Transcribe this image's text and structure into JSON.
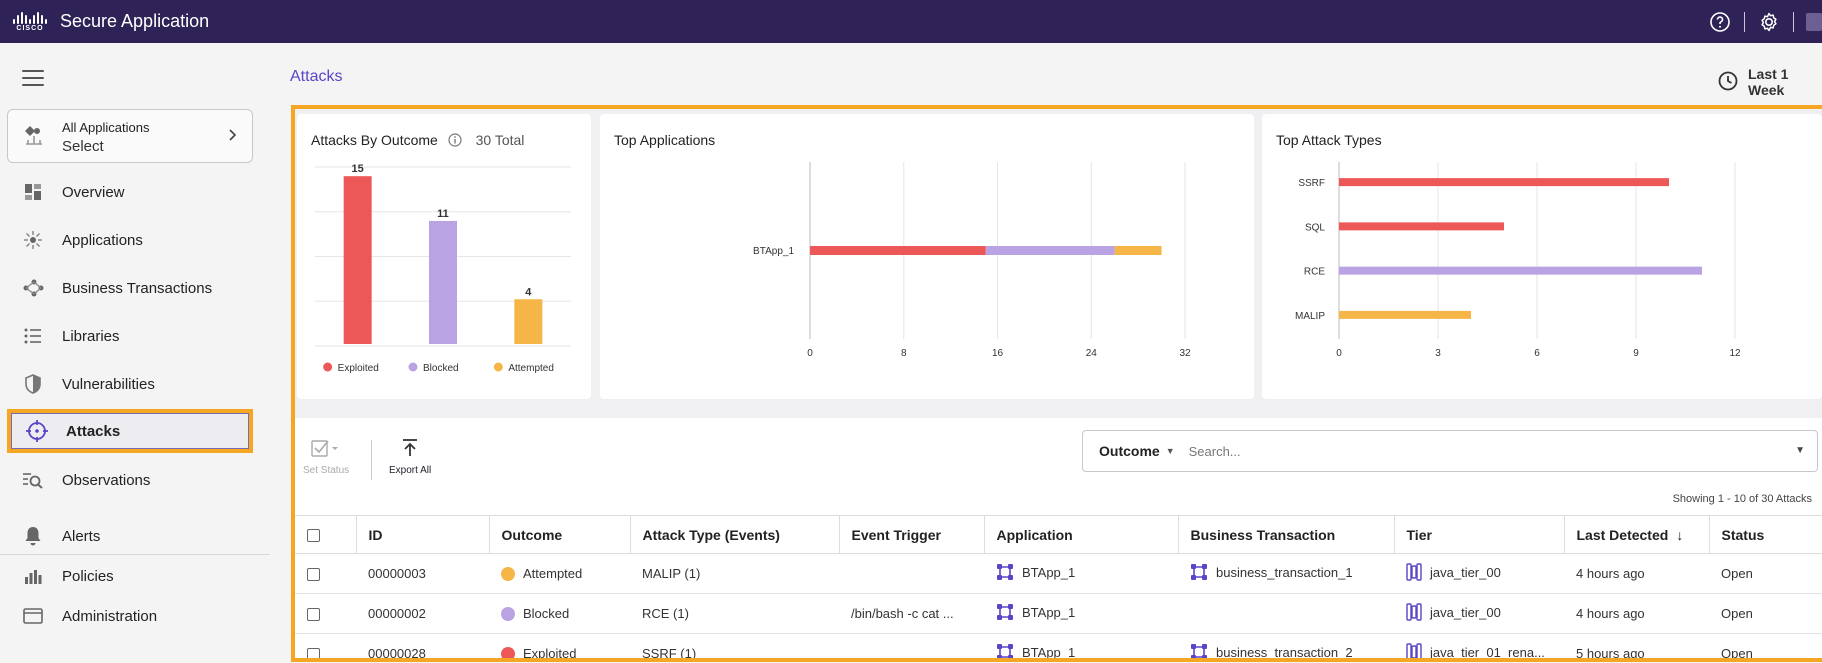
{
  "header": {
    "app_title": "Secure Application",
    "logo_text": "CISCO",
    "icons": [
      "help-icon",
      "gear-icon",
      "user-menu-icon"
    ]
  },
  "sidebar": {
    "app_selector": {
      "top": "All Applications",
      "bottom": "Select"
    },
    "items": [
      {
        "label": "Overview",
        "icon": "overview-icon"
      },
      {
        "label": "Applications",
        "icon": "applications-icon"
      },
      {
        "label": "Business Transactions",
        "icon": "business-transactions-icon"
      },
      {
        "label": "Libraries",
        "icon": "libraries-icon"
      },
      {
        "label": "Vulnerabilities",
        "icon": "vulnerabilities-icon"
      },
      {
        "label": "Attacks",
        "icon": "attacks-icon",
        "active": true
      },
      {
        "label": "Observations",
        "icon": "observations-icon"
      },
      {
        "label": "Alerts",
        "icon": "bell-icon"
      },
      {
        "label": "Policies",
        "icon": "policies-icon"
      },
      {
        "label": "Administration",
        "icon": "administration-icon"
      }
    ]
  },
  "page": {
    "title": "Attacks",
    "time_range": "Last 1 Week"
  },
  "colors": {
    "exploited": "#ec5858",
    "blocked": "#b9a3e3",
    "attempted": "#f5b547",
    "brand": "#2e2257",
    "accent": "#5a45c8",
    "highlight": "#f5a623"
  },
  "cards": {
    "outcome": {
      "title": "Attacks By Outcome",
      "total": "30 Total"
    },
    "top_apps": {
      "title": "Top Applications"
    },
    "top_types": {
      "title": "Top Attack Types"
    }
  },
  "chart_data": [
    {
      "type": "bar",
      "title": "Attacks By Outcome",
      "categories": [
        "Exploited",
        "Blocked",
        "Attempted"
      ],
      "values": [
        15,
        11,
        4
      ],
      "colors": [
        "#ec5858",
        "#b9a3e3",
        "#f5b547"
      ],
      "ylim": [
        0,
        16
      ],
      "legend": "bottom",
      "grid": true
    },
    {
      "type": "bar",
      "orientation": "horizontal",
      "stacked": true,
      "title": "Top Applications",
      "categories": [
        "BTApp_1"
      ],
      "series": [
        {
          "name": "Exploited",
          "values": [
            15
          ],
          "color": "#ec5858"
        },
        {
          "name": "Blocked",
          "values": [
            11
          ],
          "color": "#b9a3e3"
        },
        {
          "name": "Attempted",
          "values": [
            4
          ],
          "color": "#f5b547"
        }
      ],
      "xticks": [
        0,
        8,
        16,
        24,
        32
      ],
      "xlim": [
        0,
        32
      ],
      "grid": true
    },
    {
      "type": "bar",
      "orientation": "horizontal",
      "title": "Top Attack Types",
      "categories": [
        "SSRF",
        "SQL",
        "RCE",
        "MALIP"
      ],
      "values": [
        10,
        5,
        11,
        4
      ],
      "colors": [
        "#ec5858",
        "#ec5858",
        "#b9a3e3",
        "#f5b547"
      ],
      "xticks": [
        0,
        3,
        6,
        9,
        12
      ],
      "xlim": [
        0,
        12
      ],
      "grid": true
    }
  ],
  "toolbar": {
    "set_status": "Set Status",
    "export_all": "Export All",
    "filter_label": "Outcome",
    "search_placeholder": "Search...",
    "showing": "Showing 1 - 10 of 30 Attacks"
  },
  "table": {
    "columns": [
      "ID",
      "Outcome",
      "Attack Type (Events)",
      "Event Trigger",
      "Application",
      "Business Transaction",
      "Tier",
      "Last Detected",
      "Status"
    ],
    "rows": [
      {
        "id": "00000003",
        "outcome": "Attempted",
        "outcome_color": "#f5b547",
        "attack_type": "MALIP (1)",
        "event_trigger": "",
        "application": "BTApp_1",
        "business_transaction": "business_transaction_1",
        "tier": "java_tier_00",
        "last_detected": "4 hours ago",
        "status": "Open"
      },
      {
        "id": "00000002",
        "outcome": "Blocked",
        "outcome_color": "#b9a3e3",
        "attack_type": "RCE (1)",
        "event_trigger": "/bin/bash -c cat ...",
        "application": "BTApp_1",
        "business_transaction": "",
        "tier": "java_tier_00",
        "last_detected": "4 hours ago",
        "status": "Open"
      },
      {
        "id": "00000028",
        "outcome": "Exploited",
        "outcome_color": "#ec5858",
        "attack_type": "SSRF (1)",
        "event_trigger": "",
        "application": "BTApp_1",
        "business_transaction": "business_transaction_2",
        "tier": "java_tier_01_rena...",
        "last_detected": "5 hours ago",
        "status": "Open"
      }
    ]
  }
}
